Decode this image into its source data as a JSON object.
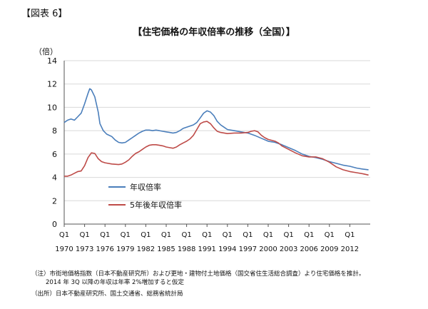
{
  "figure_label": "【図表 6】",
  "notes": [
    "（注）市街地価格指数（日本不動産研究所）および更地・建物付土地価格（国交省住生活総合調査）より住宅価格を推計。",
    "2014 年 3Q 以降の年収は年率 2%増加すると仮定",
    "（出所）日本不動産研究所、国土交通省、総務省統計局"
  ],
  "chart_data": {
    "type": "line",
    "title": "【住宅価格の年収倍率の推移（全国）】",
    "ylabel": "（倍）",
    "xlabel": "",
    "ylim": [
      0,
      14
    ],
    "yticks": [
      0,
      2,
      4,
      6,
      8,
      10,
      12,
      14
    ],
    "xlim": [
      1970.0,
      2015.0
    ],
    "xticks": [
      {
        "x": 1970,
        "q": "Q1",
        "year": "1970"
      },
      {
        "x": 1973,
        "q": "Q1",
        "year": "1973"
      },
      {
        "x": 1976,
        "q": "Q1",
        "year": "1976"
      },
      {
        "x": 1979,
        "q": "Q1",
        "year": "1979"
      },
      {
        "x": 1982,
        "q": "Q1",
        "year": "1982"
      },
      {
        "x": 1985,
        "q": "Q1",
        "year": "1985"
      },
      {
        "x": 1988,
        "q": "Q1",
        "year": "1988"
      },
      {
        "x": 1991,
        "q": "Q1",
        "year": "1991"
      },
      {
        "x": 1994,
        "q": "Q1",
        "year": "1994"
      },
      {
        "x": 1997,
        "q": "Q1",
        "year": "1997"
      },
      {
        "x": 2000,
        "q": "Q1",
        "year": "2000"
      },
      {
        "x": 2003,
        "q": "Q1",
        "year": "2003"
      },
      {
        "x": 2006,
        "q": "Q1",
        "year": "2006"
      },
      {
        "x": 2009,
        "q": "Q1",
        "year": "2009"
      },
      {
        "x": 2012,
        "q": "Q1",
        "year": "2012"
      }
    ],
    "grid": true,
    "legend_position": "lower-left",
    "series": [
      {
        "name": "年収倍率",
        "color": "#4a7ebb",
        "points": [
          [
            1970.0,
            8.7
          ],
          [
            1970.5,
            8.9
          ],
          [
            1971.0,
            9.0
          ],
          [
            1971.5,
            8.9
          ],
          [
            1972.0,
            9.2
          ],
          [
            1972.5,
            9.5
          ],
          [
            1973.0,
            10.3
          ],
          [
            1973.5,
            11.2
          ],
          [
            1973.75,
            11.6
          ],
          [
            1974.0,
            11.5
          ],
          [
            1974.5,
            10.9
          ],
          [
            1975.0,
            9.6
          ],
          [
            1975.25,
            8.6
          ],
          [
            1975.75,
            8.0
          ],
          [
            1976.25,
            7.7
          ],
          [
            1977.0,
            7.5
          ],
          [
            1977.5,
            7.2
          ],
          [
            1978.0,
            7.0
          ],
          [
            1978.5,
            6.95
          ],
          [
            1979.0,
            7.0
          ],
          [
            1979.5,
            7.2
          ],
          [
            1980.0,
            7.4
          ],
          [
            1980.5,
            7.6
          ],
          [
            1981.0,
            7.8
          ],
          [
            1981.5,
            7.95
          ],
          [
            1982.0,
            8.05
          ],
          [
            1982.5,
            8.05
          ],
          [
            1983.0,
            8.0
          ],
          [
            1983.5,
            8.05
          ],
          [
            1984.0,
            8.0
          ],
          [
            1984.5,
            7.95
          ],
          [
            1985.0,
            7.9
          ],
          [
            1985.5,
            7.85
          ],
          [
            1986.0,
            7.8
          ],
          [
            1986.5,
            7.85
          ],
          [
            1987.0,
            8.0
          ],
          [
            1987.5,
            8.2
          ],
          [
            1988.0,
            8.3
          ],
          [
            1988.5,
            8.4
          ],
          [
            1989.0,
            8.5
          ],
          [
            1989.5,
            8.7
          ],
          [
            1990.0,
            9.1
          ],
          [
            1990.5,
            9.5
          ],
          [
            1991.0,
            9.7
          ],
          [
            1991.5,
            9.6
          ],
          [
            1992.0,
            9.3
          ],
          [
            1992.5,
            8.8
          ],
          [
            1993.0,
            8.5
          ],
          [
            1993.5,
            8.3
          ],
          [
            1994.0,
            8.1
          ],
          [
            1995.0,
            8.0
          ],
          [
            1996.0,
            7.9
          ],
          [
            1997.0,
            7.8
          ],
          [
            1998.0,
            7.6
          ],
          [
            1999.0,
            7.35
          ],
          [
            2000.0,
            7.1
          ],
          [
            2001.0,
            7.0
          ],
          [
            2002.0,
            6.8
          ],
          [
            2003.0,
            6.55
          ],
          [
            2004.0,
            6.3
          ],
          [
            2005.0,
            6.0
          ],
          [
            2006.0,
            5.8
          ],
          [
            2007.0,
            5.7
          ],
          [
            2008.0,
            5.55
          ],
          [
            2009.0,
            5.35
          ],
          [
            2010.0,
            5.2
          ],
          [
            2011.0,
            5.05
          ],
          [
            2012.0,
            4.95
          ],
          [
            2013.0,
            4.8
          ],
          [
            2014.0,
            4.7
          ],
          [
            2014.75,
            4.65
          ]
        ]
      },
      {
        "name": "5年後年収倍率",
        "color": "#be4b48",
        "points": [
          [
            1970.0,
            4.1
          ],
          [
            1970.5,
            4.1
          ],
          [
            1971.0,
            4.2
          ],
          [
            1971.5,
            4.35
          ],
          [
            1972.0,
            4.5
          ],
          [
            1972.5,
            4.55
          ],
          [
            1973.0,
            5.0
          ],
          [
            1973.5,
            5.7
          ],
          [
            1974.0,
            6.1
          ],
          [
            1974.5,
            6.05
          ],
          [
            1975.0,
            5.6
          ],
          [
            1975.5,
            5.35
          ],
          [
            1976.0,
            5.25
          ],
          [
            1977.0,
            5.15
          ],
          [
            1978.0,
            5.1
          ],
          [
            1978.5,
            5.15
          ],
          [
            1979.0,
            5.3
          ],
          [
            1979.5,
            5.5
          ],
          [
            1980.0,
            5.8
          ],
          [
            1980.5,
            6.05
          ],
          [
            1981.0,
            6.2
          ],
          [
            1981.5,
            6.4
          ],
          [
            1982.0,
            6.6
          ],
          [
            1982.5,
            6.75
          ],
          [
            1983.0,
            6.8
          ],
          [
            1983.5,
            6.8
          ],
          [
            1984.0,
            6.75
          ],
          [
            1984.5,
            6.7
          ],
          [
            1985.0,
            6.6
          ],
          [
            1985.5,
            6.55
          ],
          [
            1986.0,
            6.5
          ],
          [
            1986.5,
            6.6
          ],
          [
            1987.0,
            6.8
          ],
          [
            1987.5,
            6.95
          ],
          [
            1988.0,
            7.1
          ],
          [
            1988.5,
            7.3
          ],
          [
            1989.0,
            7.6
          ],
          [
            1989.5,
            8.1
          ],
          [
            1990.0,
            8.6
          ],
          [
            1990.5,
            8.75
          ],
          [
            1991.0,
            8.8
          ],
          [
            1991.5,
            8.6
          ],
          [
            1992.0,
            8.25
          ],
          [
            1992.5,
            7.95
          ],
          [
            1993.0,
            7.85
          ],
          [
            1994.0,
            7.75
          ],
          [
            1995.0,
            7.8
          ],
          [
            1996.0,
            7.8
          ],
          [
            1997.0,
            7.85
          ],
          [
            1997.5,
            7.95
          ],
          [
            1998.0,
            8.0
          ],
          [
            1998.5,
            7.9
          ],
          [
            1999.0,
            7.6
          ],
          [
            1999.5,
            7.4
          ],
          [
            2000.0,
            7.25
          ],
          [
            2001.0,
            7.1
          ],
          [
            2001.5,
            6.95
          ],
          [
            2002.0,
            6.7
          ],
          [
            2003.0,
            6.4
          ],
          [
            2004.0,
            6.1
          ],
          [
            2005.0,
            5.85
          ],
          [
            2006.0,
            5.75
          ],
          [
            2007.0,
            5.75
          ],
          [
            2008.0,
            5.6
          ],
          [
            2009.0,
            5.3
          ],
          [
            2010.0,
            4.9
          ],
          [
            2011.0,
            4.65
          ],
          [
            2012.0,
            4.5
          ],
          [
            2013.0,
            4.4
          ],
          [
            2014.0,
            4.3
          ],
          [
            2014.75,
            4.2
          ]
        ]
      }
    ]
  }
}
